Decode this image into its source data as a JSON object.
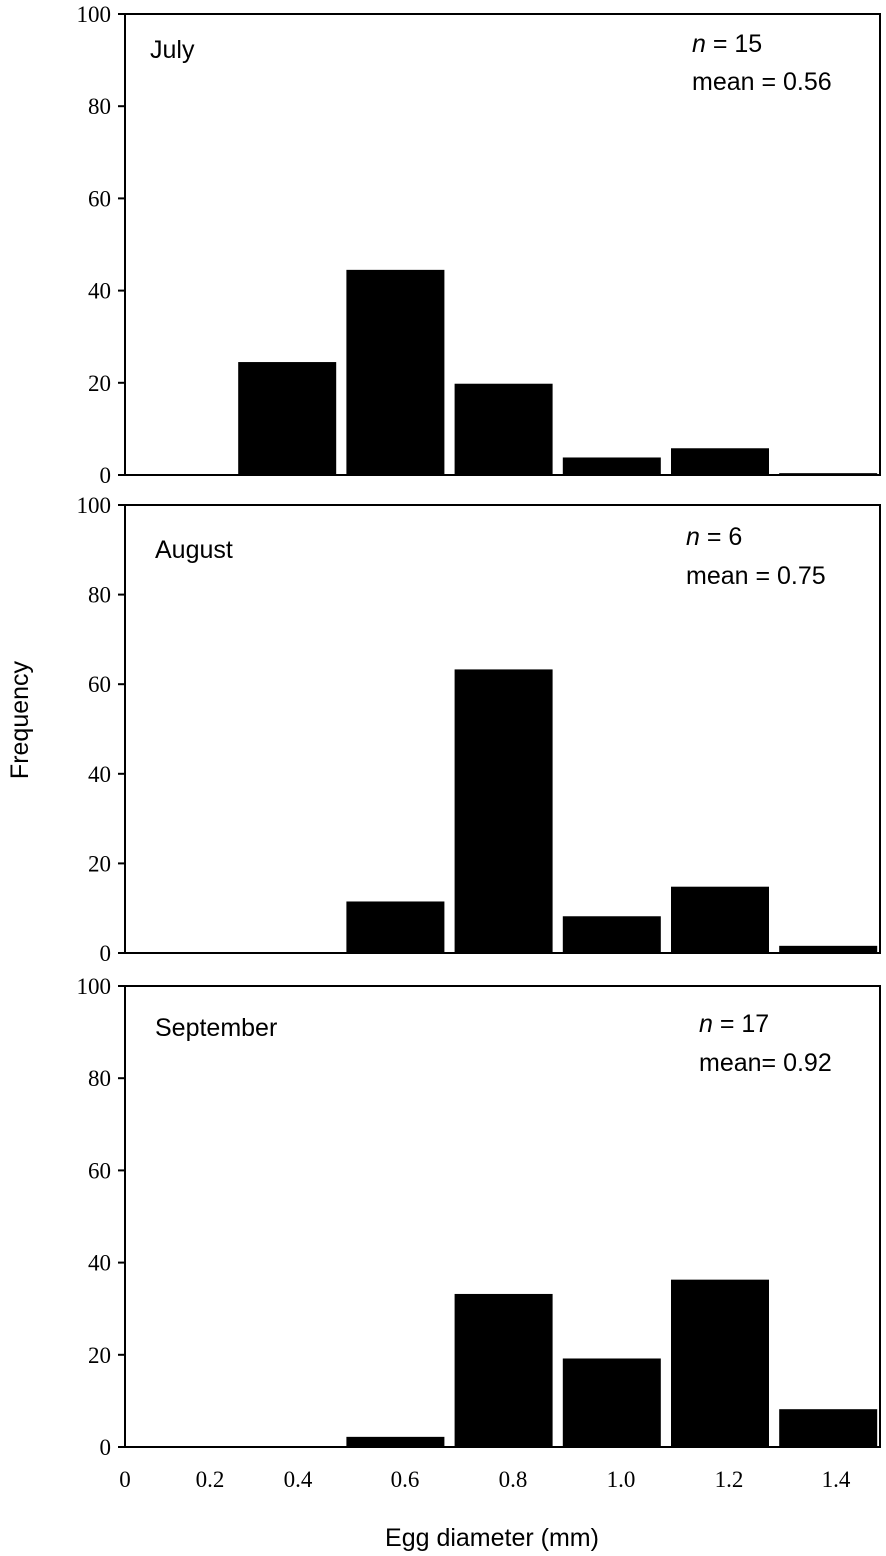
{
  "chart_data": [
    {
      "type": "bar",
      "panel": "July",
      "categories": [
        "0.2",
        "0.4",
        "0.6",
        "0.8",
        "1.0",
        "1.2",
        "1.4"
      ],
      "values": [
        0,
        24.5,
        44.5,
        19.8,
        3.8,
        5.8,
        0.4
      ],
      "n_label": "n",
      "n_value": " = 15",
      "mean_label": "mean = 0.56",
      "ylim": [
        0,
        100
      ]
    },
    {
      "type": "bar",
      "panel": "August",
      "categories": [
        "0.2",
        "0.4",
        "0.6",
        "0.8",
        "1.0",
        "1.2",
        "1.4"
      ],
      "values": [
        0,
        0,
        11.5,
        63.3,
        8.2,
        14.8,
        1.6
      ],
      "n_label": "n",
      "n_value": " = 6",
      "mean_label": "mean = 0.75",
      "ylim": [
        0,
        100
      ]
    },
    {
      "type": "bar",
      "panel": "September",
      "categories": [
        "0.2",
        "0.4",
        "0.6",
        "0.8",
        "1.0",
        "1.2",
        "1.4"
      ],
      "values": [
        0,
        0,
        2.2,
        33.2,
        19.2,
        36.3,
        8.2
      ],
      "n_label": "n",
      "n_value": " = 17",
      "mean_label": "mean= 0.92",
      "ylim": [
        0,
        100
      ]
    }
  ],
  "axes": {
    "ylabel": "Frequency",
    "xlabel": "Egg diameter (mm)",
    "yticks": [
      "0",
      "20",
      "40",
      "60",
      "80",
      "100"
    ],
    "xticks": [
      "0",
      "0.2",
      "0.4",
      "0.6",
      "0.8",
      "1.0",
      "1.2",
      "1.4"
    ],
    "bar_color": "#000000",
    "grid": false
  }
}
